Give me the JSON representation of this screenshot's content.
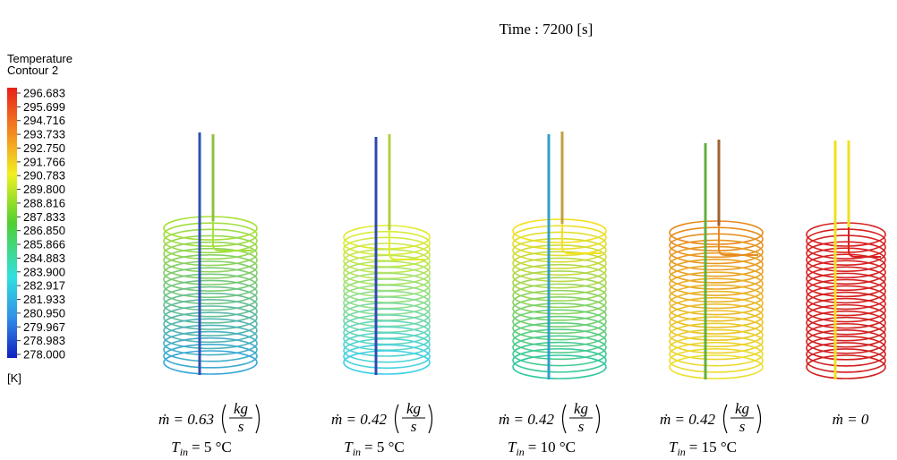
{
  "title": "Time : 7200 [s]",
  "legend": {
    "title_line1": "Temperature",
    "title_line2": "Contour 2",
    "unit": "[K]",
    "ticks": [
      "296.683",
      "295.699",
      "294.716",
      "293.733",
      "292.750",
      "291.766",
      "290.783",
      "289.800",
      "288.816",
      "287.833",
      "286.850",
      "285.866",
      "284.883",
      "283.900",
      "282.917",
      "281.933",
      "280.950",
      "279.967",
      "278.983",
      "278.000"
    ]
  },
  "coils": [
    {
      "flow": "ṁ = 0.63",
      "unit_num": "kg",
      "unit_den": "s",
      "temp_symbol": "T",
      "temp_subscript": "in",
      "temp_value": "= 5 °C"
    },
    {
      "flow": "ṁ = 0.42",
      "unit_num": "kg",
      "unit_den": "s",
      "temp_symbol": "T",
      "temp_subscript": "in",
      "temp_value": "= 5 °C"
    },
    {
      "flow": "ṁ = 0.42",
      "unit_num": "kg",
      "unit_den": "s",
      "temp_symbol": "T",
      "temp_subscript": "in",
      "temp_value": "= 10 °C"
    },
    {
      "flow": "ṁ = 0.42",
      "unit_num": "kg",
      "unit_den": "s",
      "temp_symbol": "T",
      "temp_subscript": "in",
      "temp_value": "= 15 °C"
    },
    {
      "flow": "ṁ = 0"
    }
  ]
}
